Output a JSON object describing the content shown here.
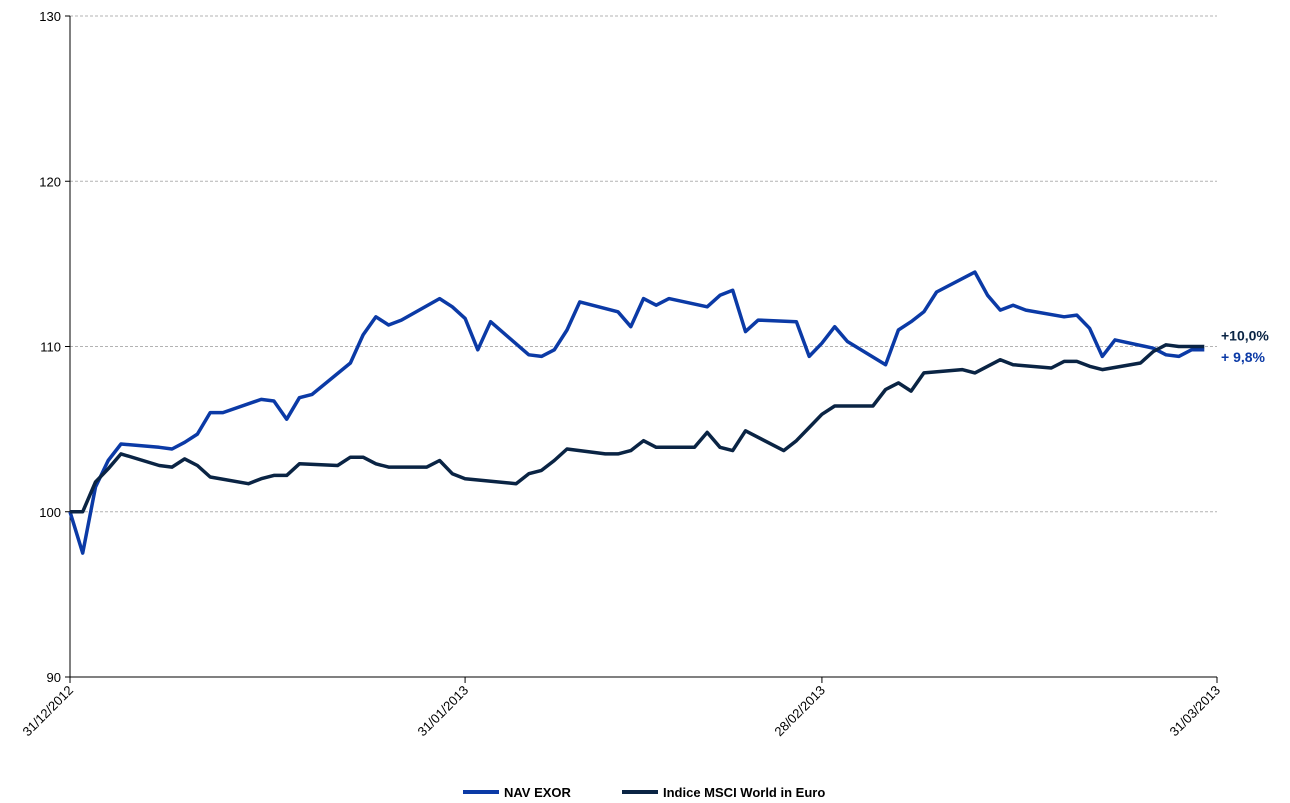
{
  "chart_data": {
    "type": "line",
    "title": "",
    "xlabel": "",
    "ylabel": "",
    "ylim": [
      90,
      130
    ],
    "yticks": [
      "90",
      "100",
      "110",
      "120",
      "130"
    ],
    "xlim": [
      "2012-12-31",
      "2013-03-31"
    ],
    "xticks": [
      {
        "date": "2012-12-31",
        "label": "31/12/2012"
      },
      {
        "date": "2013-01-31",
        "label": "31/01/2013"
      },
      {
        "date": "2013-02-28",
        "label": "28/02/2013"
      },
      {
        "date": "2013-03-31",
        "label": "31/03/2013"
      }
    ],
    "grid": "horizontal-dashed",
    "legend": "bottom-center",
    "series": [
      {
        "name": "NAV EXOR",
        "color": "#0b3aa6",
        "end_label": "+ 9,8%",
        "points": [
          [
            "2012-12-31",
            100.0
          ],
          [
            "2013-01-01",
            97.5
          ],
          [
            "2013-01-02",
            101.5
          ],
          [
            "2013-01-03",
            103.1
          ],
          [
            "2013-01-04",
            104.1
          ],
          [
            "2013-01-07",
            103.9
          ],
          [
            "2013-01-08",
            103.8
          ],
          [
            "2013-01-09",
            104.2
          ],
          [
            "2013-01-10",
            104.7
          ],
          [
            "2013-01-11",
            106.0
          ],
          [
            "2013-01-12",
            106.0
          ],
          [
            "2013-01-15",
            106.8
          ],
          [
            "2013-01-16",
            106.7
          ],
          [
            "2013-01-17",
            105.6
          ],
          [
            "2013-01-18",
            106.9
          ],
          [
            "2013-01-19",
            107.1
          ],
          [
            "2013-01-22",
            109.0
          ],
          [
            "2013-01-23",
            110.7
          ],
          [
            "2013-01-24",
            111.8
          ],
          [
            "2013-01-25",
            111.3
          ],
          [
            "2013-01-26",
            111.6
          ],
          [
            "2013-01-29",
            112.9
          ],
          [
            "2013-01-30",
            112.4
          ],
          [
            "2013-01-31",
            111.7
          ],
          [
            "2013-02-01",
            109.8
          ],
          [
            "2013-02-02",
            111.5
          ],
          [
            "2013-02-05",
            109.5
          ],
          [
            "2013-02-06",
            109.4
          ],
          [
            "2013-02-07",
            109.8
          ],
          [
            "2013-02-08",
            111.0
          ],
          [
            "2013-02-09",
            112.7
          ],
          [
            "2013-02-12",
            112.1
          ],
          [
            "2013-02-13",
            111.2
          ],
          [
            "2013-02-14",
            112.9
          ],
          [
            "2013-02-15",
            112.5
          ],
          [
            "2013-02-16",
            112.9
          ],
          [
            "2013-02-19",
            112.4
          ],
          [
            "2013-02-20",
            113.1
          ],
          [
            "2013-02-21",
            113.4
          ],
          [
            "2013-02-22",
            110.9
          ],
          [
            "2013-02-23",
            111.6
          ],
          [
            "2013-02-26",
            111.5
          ],
          [
            "2013-02-27",
            109.4
          ],
          [
            "2013-02-28",
            110.2
          ],
          [
            "2013-03-01",
            111.2
          ],
          [
            "2013-03-02",
            110.3
          ],
          [
            "2013-03-05",
            108.9
          ],
          [
            "2013-03-06",
            111.0
          ],
          [
            "2013-03-07",
            111.5
          ],
          [
            "2013-03-08",
            112.1
          ],
          [
            "2013-03-09",
            113.3
          ],
          [
            "2013-03-12",
            114.5
          ],
          [
            "2013-03-13",
            113.1
          ],
          [
            "2013-03-14",
            112.2
          ],
          [
            "2013-03-15",
            112.5
          ],
          [
            "2013-03-16",
            112.2
          ],
          [
            "2013-03-19",
            111.8
          ],
          [
            "2013-03-20",
            111.9
          ],
          [
            "2013-03-21",
            111.1
          ],
          [
            "2013-03-22",
            109.4
          ],
          [
            "2013-03-23",
            110.4
          ],
          [
            "2013-03-26",
            109.9
          ],
          [
            "2013-03-27",
            109.5
          ],
          [
            "2013-03-28",
            109.4
          ],
          [
            "2013-03-29",
            109.8
          ],
          [
            "2013-03-30",
            109.8
          ]
        ]
      },
      {
        "name": "Indice MSCI World in Euro",
        "color": "#0a2444",
        "end_label": "+10,0%",
        "points": [
          [
            "2012-12-31",
            100.0
          ],
          [
            "2013-01-01",
            100.0
          ],
          [
            "2013-01-02",
            101.8
          ],
          [
            "2013-01-03",
            102.6
          ],
          [
            "2013-01-04",
            103.5
          ],
          [
            "2013-01-07",
            102.8
          ],
          [
            "2013-01-08",
            102.7
          ],
          [
            "2013-01-09",
            103.2
          ],
          [
            "2013-01-10",
            102.8
          ],
          [
            "2013-01-11",
            102.1
          ],
          [
            "2013-01-14",
            101.7
          ],
          [
            "2013-01-15",
            102.0
          ],
          [
            "2013-01-16",
            102.2
          ],
          [
            "2013-01-17",
            102.2
          ],
          [
            "2013-01-18",
            102.9
          ],
          [
            "2013-01-21",
            102.8
          ],
          [
            "2013-01-22",
            103.3
          ],
          [
            "2013-01-23",
            103.3
          ],
          [
            "2013-01-24",
            102.9
          ],
          [
            "2013-01-25",
            102.7
          ],
          [
            "2013-01-28",
            102.7
          ],
          [
            "2013-01-29",
            103.1
          ],
          [
            "2013-01-30",
            102.3
          ],
          [
            "2013-01-31",
            102.0
          ],
          [
            "2013-02-04",
            101.7
          ],
          [
            "2013-02-05",
            102.3
          ],
          [
            "2013-02-06",
            102.5
          ],
          [
            "2013-02-07",
            103.1
          ],
          [
            "2013-02-08",
            103.8
          ],
          [
            "2013-02-11",
            103.5
          ],
          [
            "2013-02-12",
            103.5
          ],
          [
            "2013-02-13",
            103.7
          ],
          [
            "2013-02-14",
            104.3
          ],
          [
            "2013-02-15",
            103.9
          ],
          [
            "2013-02-18",
            103.9
          ],
          [
            "2013-02-19",
            104.8
          ],
          [
            "2013-02-20",
            103.9
          ],
          [
            "2013-02-21",
            103.7
          ],
          [
            "2013-02-22",
            104.9
          ],
          [
            "2013-02-25",
            103.7
          ],
          [
            "2013-02-26",
            104.3
          ],
          [
            "2013-02-27",
            105.1
          ],
          [
            "2013-02-28",
            105.9
          ],
          [
            "2013-03-01",
            106.4
          ],
          [
            "2013-03-04",
            106.4
          ],
          [
            "2013-03-05",
            107.4
          ],
          [
            "2013-03-06",
            107.8
          ],
          [
            "2013-03-07",
            107.3
          ],
          [
            "2013-03-08",
            108.4
          ],
          [
            "2013-03-11",
            108.6
          ],
          [
            "2013-03-12",
            108.4
          ],
          [
            "2013-03-13",
            108.8
          ],
          [
            "2013-03-14",
            109.2
          ],
          [
            "2013-03-15",
            108.9
          ],
          [
            "2013-03-18",
            108.7
          ],
          [
            "2013-03-19",
            109.1
          ],
          [
            "2013-03-20",
            109.1
          ],
          [
            "2013-03-21",
            108.8
          ],
          [
            "2013-03-22",
            108.6
          ],
          [
            "2013-03-25",
            109.0
          ],
          [
            "2013-03-26",
            109.7
          ],
          [
            "2013-03-27",
            110.1
          ],
          [
            "2013-03-28",
            110.0
          ],
          [
            "2013-03-30",
            110.0
          ]
        ]
      }
    ]
  }
}
